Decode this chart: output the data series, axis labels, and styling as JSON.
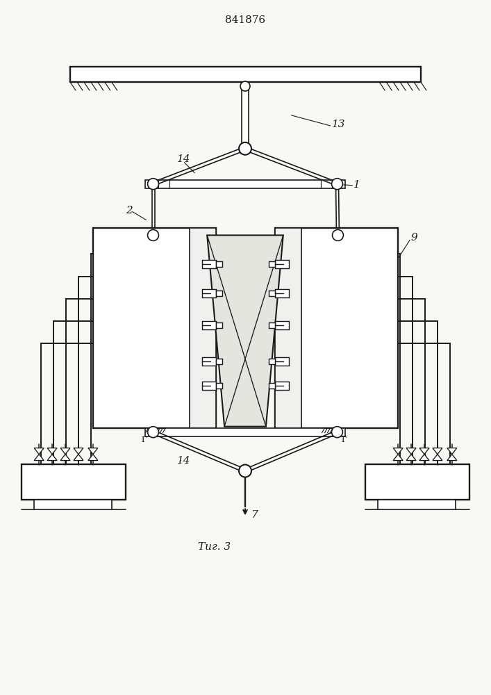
{
  "title": "841876",
  "fig_label": "Τиг. 3",
  "bg_color": "#f8f8f5",
  "line_color": "#1a1a1a",
  "title_fontsize": 11,
  "label_fontsize": 10
}
